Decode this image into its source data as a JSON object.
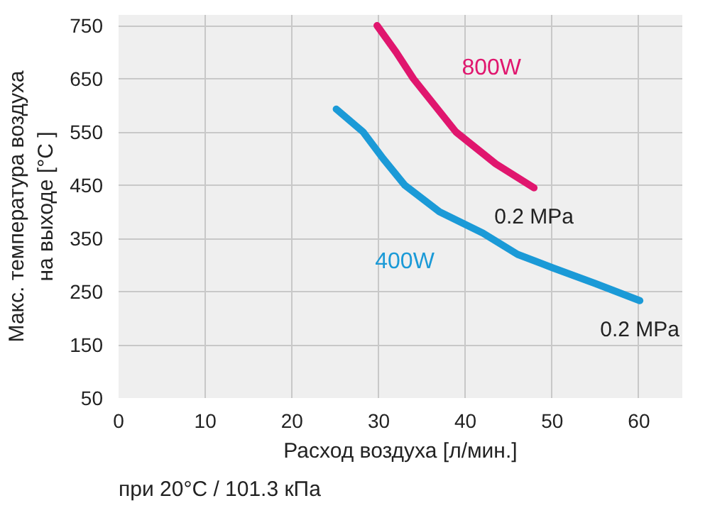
{
  "chart_data": {
    "type": "line",
    "xlabel": "Расход воздуха [л/мин.]",
    "ylabel": "Макс. температура воздуха\nна выходе [°C ]",
    "xlim": [
      0,
      65
    ],
    "xticks": [
      0,
      10,
      20,
      30,
      40,
      50,
      60
    ],
    "ylim": [
      50,
      770
    ],
    "yticks": [
      50,
      150,
      250,
      350,
      450,
      550,
      650,
      750
    ],
    "grid": true,
    "marker": "none",
    "line_style": "solid",
    "series": [
      {
        "name": "800W",
        "color": "#e0166e",
        "x": [
          29.8,
          32,
          34,
          38.9,
          43.5,
          47.9
        ],
        "values": [
          750,
          700,
          650,
          550,
          490,
          445
        ]
      },
      {
        "name": "400W",
        "color": "#1b9ad7",
        "x": [
          25.1,
          28.2,
          30.5,
          33,
          37,
          42,
          46,
          50,
          55,
          60.1
        ],
        "values": [
          593,
          550,
          500,
          450,
          400,
          360,
          320,
          295,
          265,
          233
        ]
      }
    ],
    "annotations": [
      {
        "text": "0.2 MPa",
        "x": 47.9,
        "y": 445
      },
      {
        "text": "0.2 MPa",
        "x": 60.1,
        "y": 233
      },
      "при 20°C / 101.3 кПа"
    ]
  }
}
